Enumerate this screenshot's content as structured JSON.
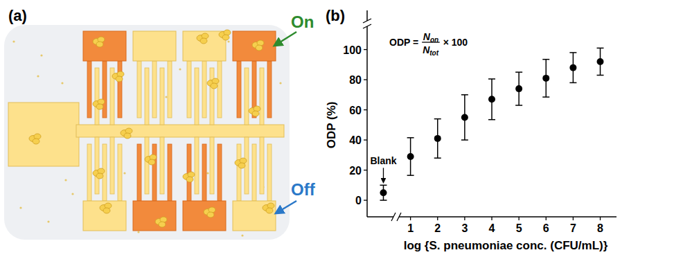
{
  "diagram": {
    "label": "(a)",
    "on_label": "On",
    "off_label": "Off"
  },
  "chart_data": {
    "type": "scatter",
    "label": "(b)",
    "formula": {
      "lhs": "ODP =",
      "numerator": "N",
      "numerator_sub": "on",
      "denominator": "N",
      "denominator_sub": "tot",
      "rhs": "× 100"
    },
    "annotation": "Blank",
    "x": [
      0,
      1,
      2,
      3,
      4,
      5,
      6,
      7,
      8
    ],
    "values": [
      5,
      29,
      41,
      55,
      67,
      74,
      81,
      88,
      92
    ],
    "errors": [
      5,
      12.5,
      13,
      15,
      13.5,
      11,
      12.5,
      10,
      9
    ],
    "xlim": [
      -0.6,
      8.6
    ],
    "xticks": [
      1,
      2,
      3,
      4,
      5,
      6,
      7,
      8
    ],
    "ylim": [
      -11,
      126
    ],
    "yticks": [
      0,
      20,
      40,
      60,
      80,
      100
    ],
    "x_label": "log {S. pneumoniae conc. (CFU/mL)}",
    "y_label": "ODP (%)",
    "color": "#000000",
    "marker": "circle",
    "grid": false
  }
}
